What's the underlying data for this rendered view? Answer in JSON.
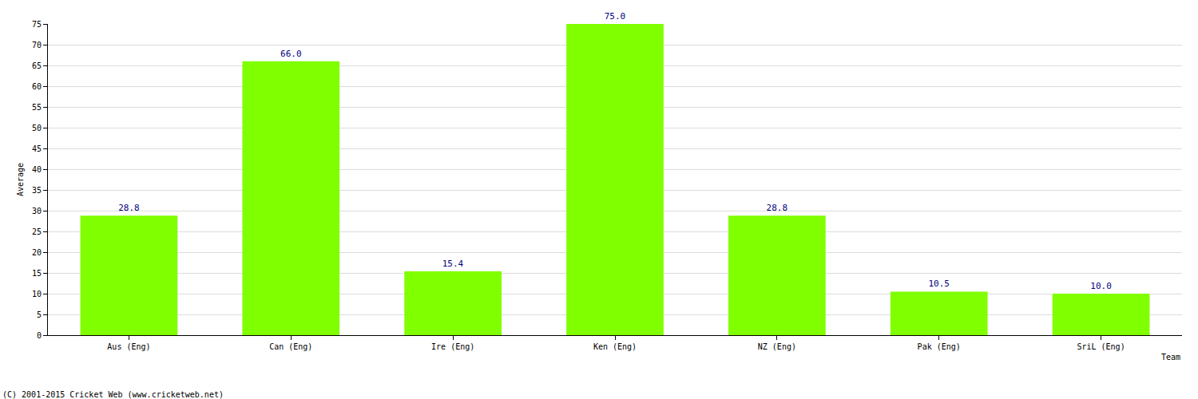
{
  "chart_data": {
    "type": "bar",
    "categories": [
      "Aus (Eng)",
      "Can (Eng)",
      "Ire (Eng)",
      "Ken (Eng)",
      "NZ (Eng)",
      "Pak (Eng)",
      "SriL (Eng)"
    ],
    "values": [
      28.8,
      66.0,
      15.4,
      75.0,
      28.8,
      10.5,
      10.0
    ],
    "value_labels": [
      "28.8",
      "66.0",
      "15.4",
      "75.0",
      "28.8",
      "10.5",
      "10.0"
    ],
    "data_labels": true,
    "color": "#7fff00",
    "xlabel": "Team",
    "ylabel": "Average",
    "ylim": [
      0,
      75
    ],
    "yticks": [
      0,
      5,
      10,
      15,
      20,
      25,
      30,
      35,
      40,
      45,
      50,
      55,
      60,
      65,
      70,
      75
    ],
    "grid": true,
    "annotations": [
      "(C) 2001-2015 Cricket Web (www.cricketweb.net)"
    ]
  }
}
